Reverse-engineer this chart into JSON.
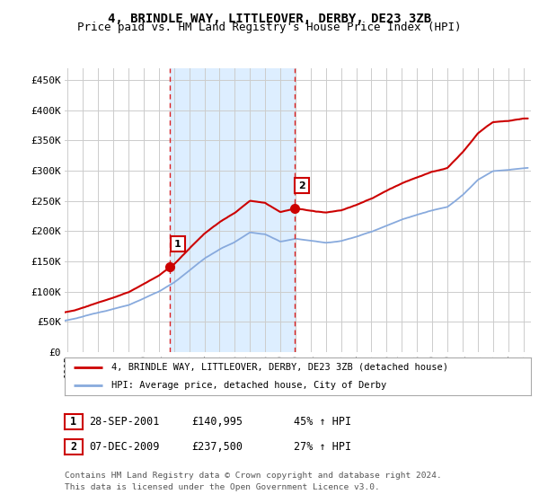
{
  "title": "4, BRINDLE WAY, LITTLEOVER, DERBY, DE23 3ZB",
  "subtitle": "Price paid vs. HM Land Registry's House Price Index (HPI)",
  "title_fontsize": 10,
  "subtitle_fontsize": 9,
  "ylabel_ticks": [
    "£0",
    "£50K",
    "£100K",
    "£150K",
    "£200K",
    "£250K",
    "£300K",
    "£350K",
    "£400K",
    "£450K"
  ],
  "ytick_values": [
    0,
    50000,
    100000,
    150000,
    200000,
    250000,
    300000,
    350000,
    400000,
    450000
  ],
  "ylim": [
    0,
    470000
  ],
  "xlim_start": 1994.8,
  "xlim_end": 2025.5,
  "purchase1_year": 2001.75,
  "purchase1_price": 140995,
  "purchase2_year": 2009.92,
  "purchase2_price": 237500,
  "dashed_line_color": "#dd2222",
  "shaded_region_color": "#ddeeff",
  "legend_line1_label": "4, BRINDLE WAY, LITTLEOVER, DERBY, DE23 3ZB (detached house)",
  "legend_line2_label": "HPI: Average price, detached house, City of Derby",
  "legend_line1_color": "#cc0000",
  "legend_line2_color": "#88aadd",
  "table_row1": [
    "1",
    "28-SEP-2001",
    "£140,995",
    "45% ↑ HPI"
  ],
  "table_row2": [
    "2",
    "07-DEC-2009",
    "£237,500",
    "27% ↑ HPI"
  ],
  "footnote1": "Contains HM Land Registry data © Crown copyright and database right 2024.",
  "footnote2": "This data is licensed under the Open Government Licence v3.0.",
  "background_color": "#ffffff",
  "grid_color": "#cccccc",
  "box_color": "#cc0000"
}
